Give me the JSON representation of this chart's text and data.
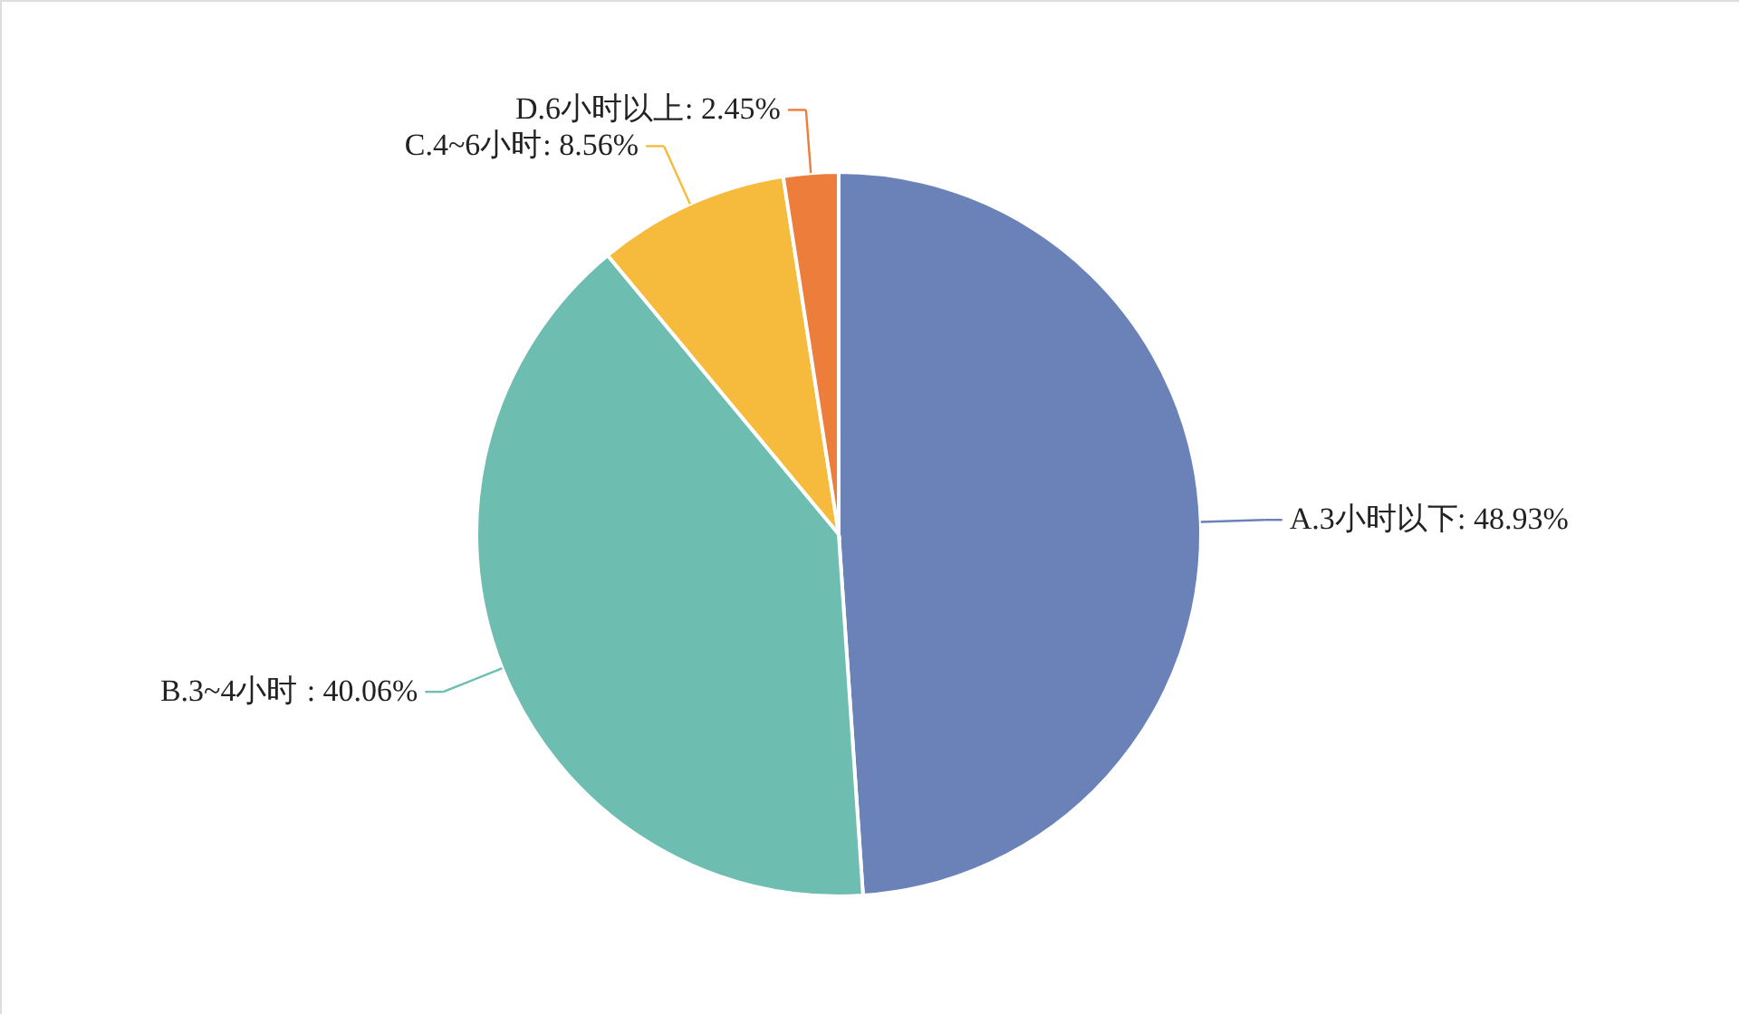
{
  "chart_data": {
    "type": "pie",
    "categories": [
      "A.3小时以下",
      "B.3~4小时",
      "C.4~6小时",
      "D.6小时以上"
    ],
    "values": [
      48.93,
      40.06,
      8.56,
      2.45
    ],
    "colors": [
      "#6a82b8",
      "#6dbdb0",
      "#f6bb3c",
      "#ed7d3a"
    ],
    "value_labels": [
      ": 48.93%",
      " : 40.06%",
      ": 8.56%",
      ": 2.45%"
    ]
  }
}
